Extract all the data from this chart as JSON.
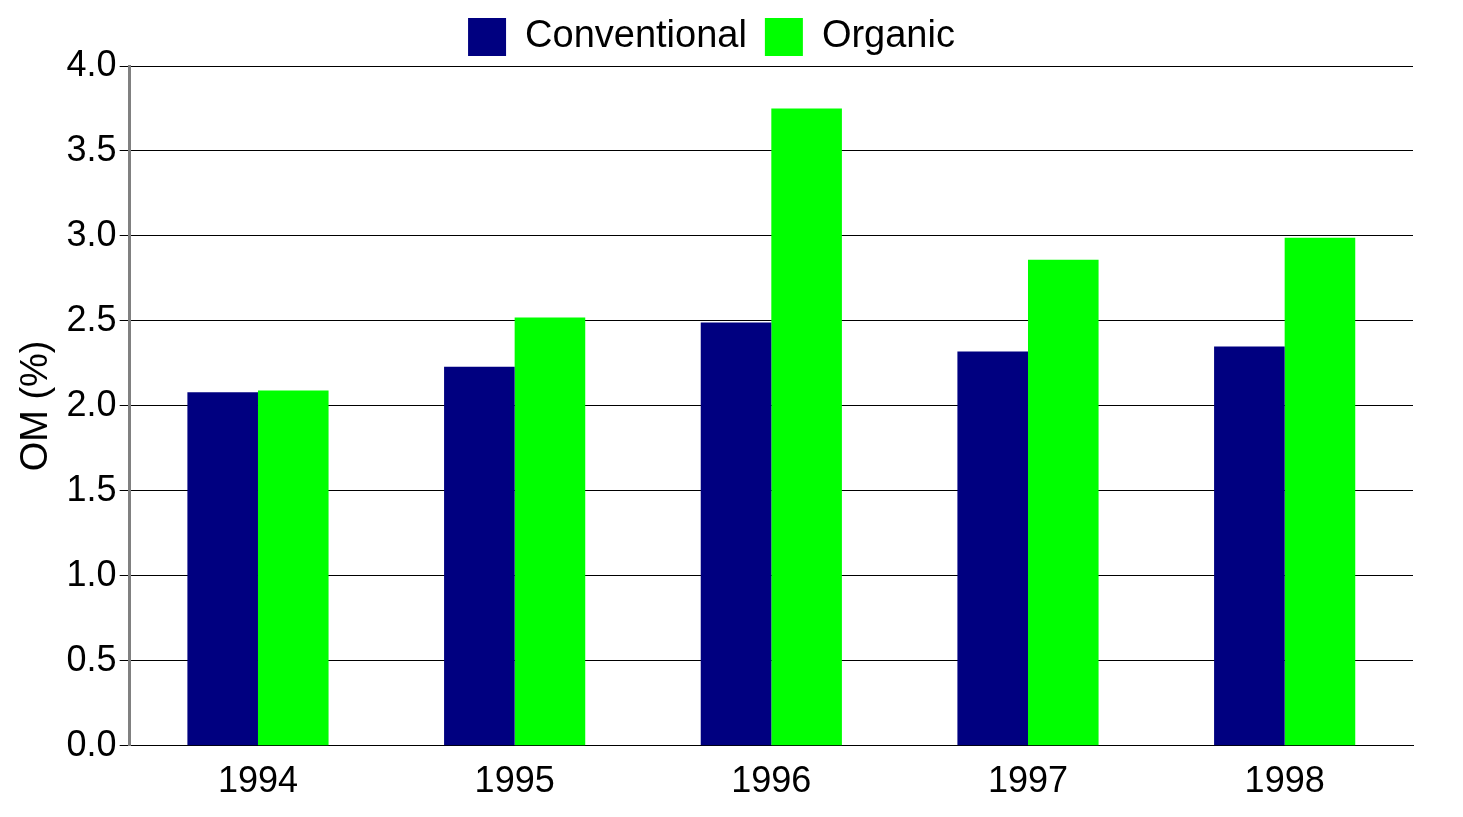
{
  "chart_data": {
    "type": "bar",
    "ylabel": "OM (%)",
    "categories": [
      "1994",
      "1995",
      "1996",
      "1997",
      "1998"
    ],
    "series": [
      {
        "name": "Conventional",
        "color": "#000080",
        "values": [
          2.08,
          2.23,
          2.49,
          2.32,
          2.35
        ]
      },
      {
        "name": "Organic",
        "color": "#00ff00",
        "values": [
          2.09,
          2.52,
          3.75,
          2.86,
          2.99
        ]
      }
    ],
    "ylim": [
      0,
      4
    ],
    "yticks": [
      {
        "value": 0,
        "label": "0.0"
      },
      {
        "value": 0.5,
        "label": "0.5"
      },
      {
        "value": 1,
        "label": "1.0"
      },
      {
        "value": 1.5,
        "label": "1.5"
      },
      {
        "value": 2,
        "label": "2.0"
      },
      {
        "value": 2.5,
        "label": "2.5"
      },
      {
        "value": 3,
        "label": "3.0"
      },
      {
        "value": 3.5,
        "label": "3.5"
      },
      {
        "value": 4,
        "label": "4.0"
      }
    ],
    "grid": "y",
    "legend": "top"
  }
}
